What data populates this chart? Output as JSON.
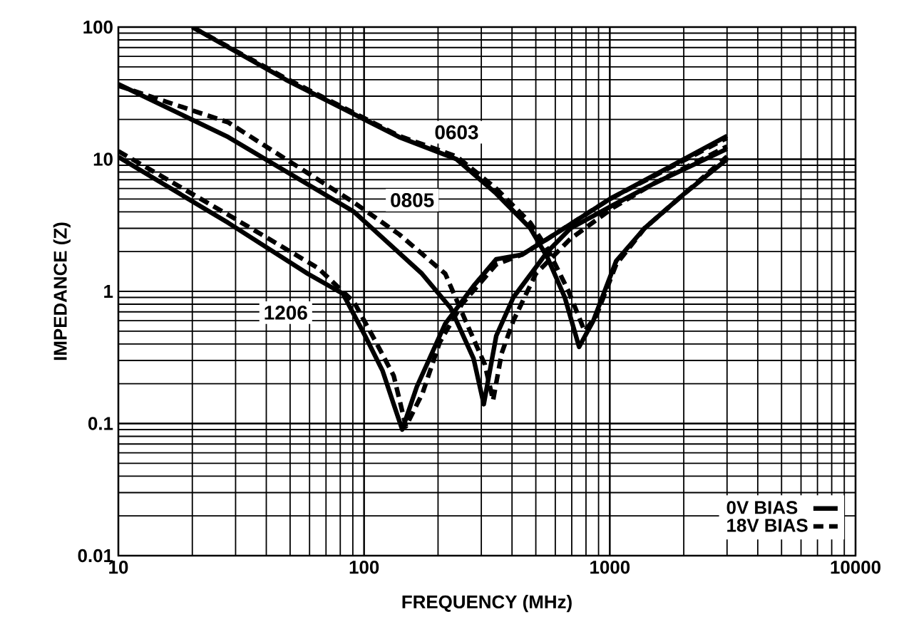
{
  "chart_data": {
    "type": "line",
    "xlabel": "FREQUENCY (MHz)",
    "ylabel": "IMPEDANCE (Z)",
    "log": "xy",
    "grid": true,
    "legend": "bottom right",
    "xlim": [
      10,
      10000
    ],
    "ylim": [
      0.01,
      100
    ],
    "xticks": [
      10,
      100,
      1000,
      10000
    ],
    "yticks": [
      0.01,
      0.1,
      1,
      10,
      100
    ],
    "series": [
      {
        "name": "0V BIAS",
        "color": "#000000",
        "line_style": "solid",
        "x": [
          20,
          48,
          139,
          238,
          345,
          475,
          558,
          656,
          750,
          857,
          1062,
          1384,
          2013,
          3000
        ],
        "values": [
          100,
          40,
          14.7,
          10,
          5.5,
          3.0,
          1.8,
          0.9,
          0.38,
          0.6,
          1.7,
          3.0,
          5.5,
          10
        ]
      },
      {
        "name": "18V BIAS",
        "color": "#000000",
        "line_style": "dashed",
        "x": [
          20,
          48,
          139,
          238,
          345,
          475,
          558,
          680,
          790,
          880,
          1062,
          1384,
          2013,
          3000
        ],
        "values": [
          100,
          41,
          15,
          10.5,
          6,
          3.3,
          2.1,
          1.0,
          0.5,
          0.65,
          1.6,
          3.0,
          5.5,
          10.5
        ]
      },
      {
        "color": "#000000",
        "line_style": "solid",
        "x": [
          10,
          28,
          91,
          172,
          225,
          279,
          307,
          345,
          405,
          558,
          692,
          1032,
          1500,
          3000
        ],
        "values": [
          37,
          14.7,
          4.0,
          1.36,
          0.75,
          0.31,
          0.14,
          0.46,
          0.9,
          2.0,
          3.0,
          4.5,
          6.5,
          12
        ]
      },
      {
        "color": "#000000",
        "line_style": "dashed",
        "x": [
          10,
          28,
          91,
          139,
          214,
          264,
          310,
          335,
          363,
          405,
          500,
          692,
          1032,
          1500,
          3000
        ],
        "values": [
          36,
          19,
          4.7,
          2.7,
          1.36,
          0.55,
          0.28,
          0.15,
          0.34,
          0.6,
          1.36,
          2.5,
          4.3,
          6.5,
          12.5
        ]
      },
      {
        "color": "#000000",
        "line_style": "solid",
        "x": [
          10,
          28,
          59,
          82,
          101,
          119,
          132,
          143,
          164,
          214,
          279,
          345,
          440,
          558,
          1000,
          3000
        ],
        "values": [
          10.4,
          3.3,
          1.36,
          0.96,
          0.46,
          0.25,
          0.14,
          0.09,
          0.19,
          0.57,
          1.1,
          1.75,
          1.9,
          2.5,
          5,
          15
        ]
      },
      {
        "color": "#000000",
        "line_style": "dashed",
        "x": [
          10,
          28,
          65,
          91,
          112,
          132,
          148,
          173,
          203,
          250,
          345,
          440,
          558,
          1000,
          3000
        ],
        "values": [
          11.5,
          3.8,
          1.5,
          0.83,
          0.41,
          0.23,
          0.095,
          0.17,
          0.41,
          0.8,
          1.6,
          1.9,
          2.5,
          5,
          14.5
        ]
      }
    ],
    "annotations": [
      {
        "text": "0603",
        "x": 238,
        "y": 16
      },
      {
        "text": "0805",
        "x": 157,
        "y": 4.9
      },
      {
        "text": "1206",
        "x": 48,
        "y": 0.69
      }
    ]
  }
}
